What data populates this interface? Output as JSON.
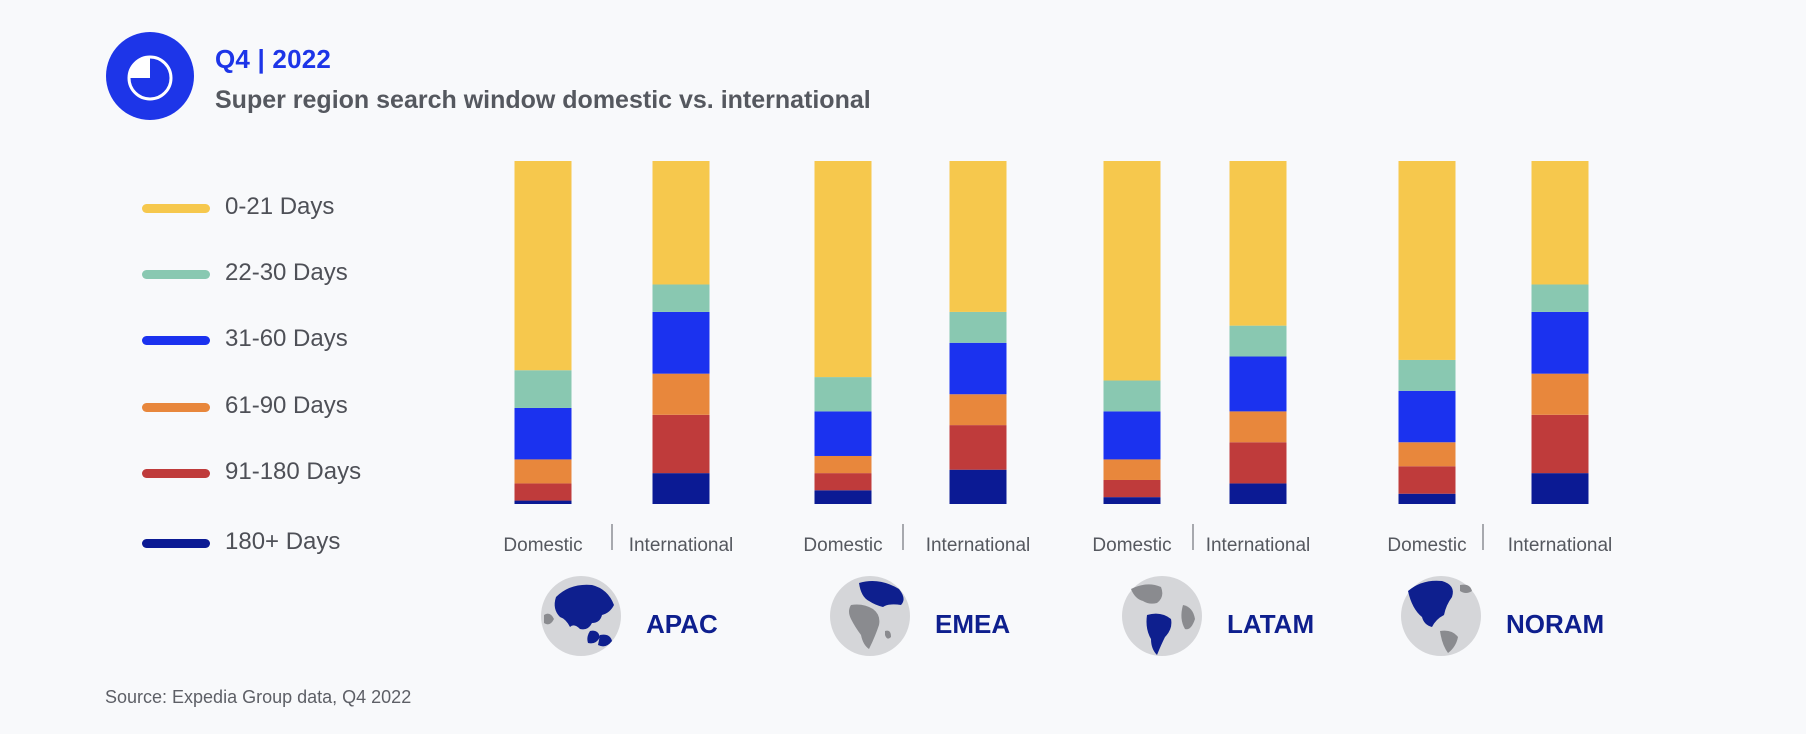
{
  "header": {
    "period": "Q4 | 2022",
    "title": "Super region search window domestic vs. international"
  },
  "source": "Source: Expedia Group data, Q4 2022",
  "chart_data": {
    "type": "bar",
    "stacked": true,
    "normalized_percent": true,
    "title": "Super region search window domestic vs. international",
    "categories": [
      "APAC Domestic",
      "APAC International",
      "EMEA Domestic",
      "EMEA International",
      "LATAM Domestic",
      "LATAM International",
      "NORAM Domestic",
      "NORAM International"
    ],
    "tick_labels": [
      "Domestic",
      "International",
      "Domestic",
      "International",
      "Domestic",
      "International",
      "Domestic",
      "International"
    ],
    "groups": [
      "APAC",
      "EMEA",
      "LATAM",
      "NORAM"
    ],
    "series": [
      {
        "name": "0-21 Days",
        "color": "#f6c84d",
        "values": [
          61,
          36,
          63,
          44,
          64,
          48,
          58,
          36
        ]
      },
      {
        "name": "22-30 Days",
        "color": "#89c8b1",
        "values": [
          11,
          8,
          10,
          9,
          9,
          9,
          9,
          8
        ]
      },
      {
        "name": "31-60 Days",
        "color": "#1b32ef",
        "values": [
          15,
          18,
          13,
          15,
          14,
          16,
          15,
          18
        ]
      },
      {
        "name": "61-90 Days",
        "color": "#e8873c",
        "values": [
          7,
          12,
          5,
          9,
          6,
          9,
          7,
          12
        ]
      },
      {
        "name": "91-180 Days",
        "color": "#bf3b3b",
        "values": [
          5,
          17,
          5,
          13,
          5,
          12,
          8,
          17
        ]
      },
      {
        "name": "180+ Days",
        "color": "#0b1a94",
        "values": [
          1,
          9,
          4,
          10,
          2,
          6,
          3,
          9
        ]
      }
    ],
    "legend_position": "left",
    "grid": false
  }
}
